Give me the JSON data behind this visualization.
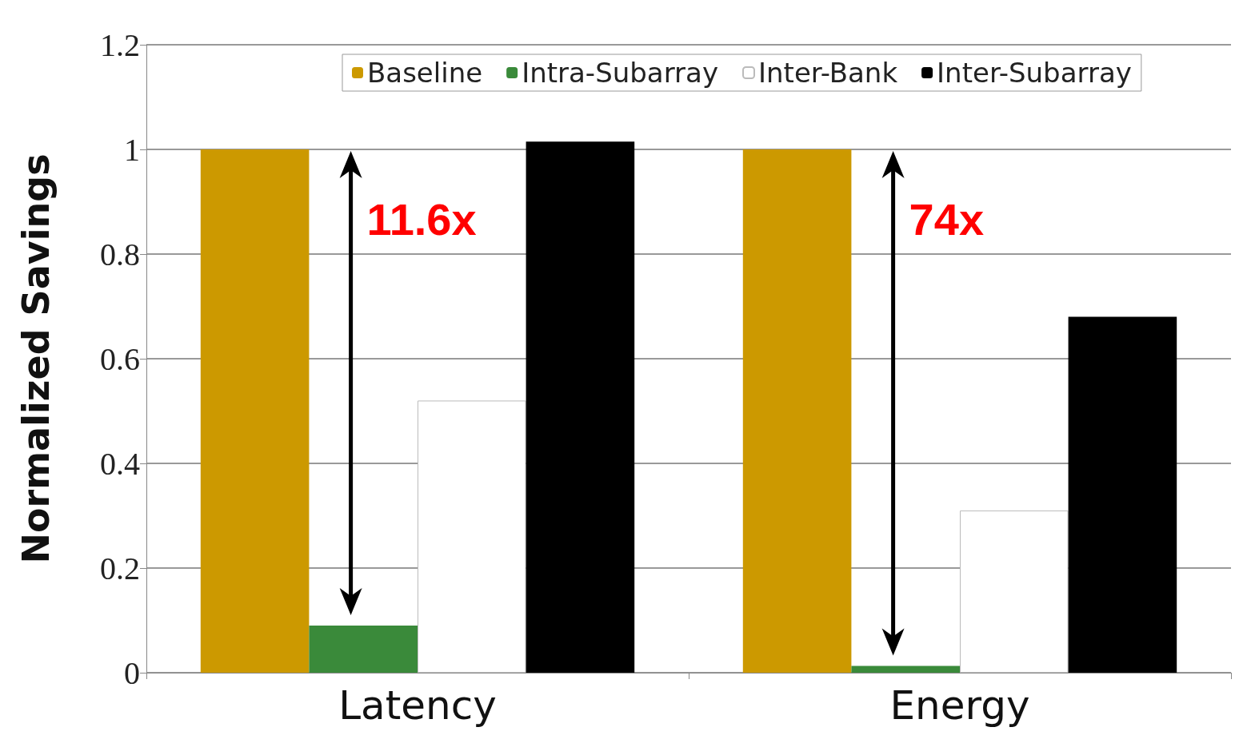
{
  "chart_data": {
    "type": "bar",
    "ylabel": "Normalized Savings",
    "categories": [
      "Latency",
      "Energy"
    ],
    "series": [
      {
        "name": "Baseline",
        "color": "#cc9900",
        "values": [
          1,
          1
        ]
      },
      {
        "name": "Intra-Subarray",
        "color": "#3a8a3a",
        "values": [
          0.09,
          0.013
        ]
      },
      {
        "name": "Inter-Bank",
        "color": "#ffffff",
        "values": [
          0.52,
          0.31
        ]
      },
      {
        "name": "Inter-Subarray",
        "color": "#000000",
        "values": [
          1.015,
          0.68
        ]
      }
    ],
    "ylim": [
      0,
      1.2
    ],
    "yticks": [
      0,
      0.2,
      0.4,
      0.6,
      0.8,
      1,
      1.2
    ],
    "grid": "y",
    "legend": "top",
    "annotations": [
      "11.6x",
      "74x"
    ]
  }
}
